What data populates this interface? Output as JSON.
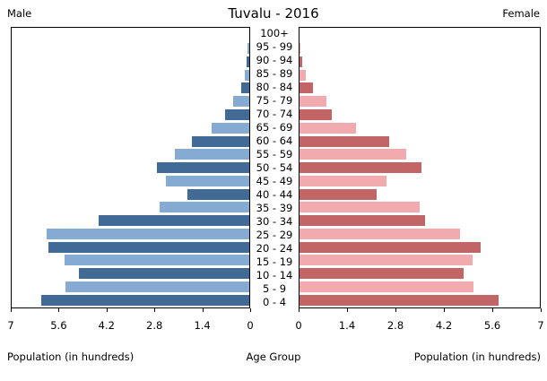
{
  "header": {
    "title": "Tuvalu - 2016",
    "left_label": "Male",
    "right_label": "Female"
  },
  "chart_data": {
    "type": "bar",
    "subtype": "population-pyramid",
    "title": "Tuvalu - 2016",
    "age_groups": [
      "100+",
      "95 - 99",
      "90 - 94",
      "85 - 89",
      "80 - 84",
      "75 - 79",
      "70 - 74",
      "65 - 69",
      "60 - 64",
      "55 - 59",
      "50 - 54",
      "45 - 49",
      "40 - 44",
      "35 - 39",
      "30 - 34",
      "25 - 29",
      "20 - 24",
      "15 - 19",
      "10 - 14",
      "5 - 9",
      "0 - 4"
    ],
    "series": [
      {
        "name": "Male",
        "values": [
          0.0,
          0.05,
          0.09,
          0.13,
          0.25,
          0.47,
          0.72,
          1.12,
          1.7,
          2.18,
          2.72,
          2.46,
          1.81,
          2.64,
          4.43,
          5.96,
          5.91,
          5.45,
          5.03,
          5.41,
          6.13
        ]
      },
      {
        "name": "Female",
        "values": [
          0.0,
          0.03,
          0.08,
          0.18,
          0.38,
          0.79,
          0.95,
          1.64,
          2.6,
          3.1,
          3.54,
          2.54,
          2.25,
          3.49,
          3.65,
          4.67,
          5.28,
          5.03,
          4.77,
          5.08,
          5.79
        ]
      }
    ],
    "xlim": [
      0,
      7
    ],
    "ticks_left": [
      "7",
      "5.6",
      "4.2",
      "2.8",
      "1.4",
      "0"
    ],
    "ticks_right": [
      "0",
      "1.4",
      "2.8",
      "4.2",
      "5.6",
      "7"
    ],
    "xlabel_left": "Population (in hundreds)",
    "xlabel_center": "Age Group",
    "xlabel_right": "Population (in hundreds)",
    "legend_position": "top-corners",
    "grid": "off",
    "colors": {
      "male_dark": "#426a96",
      "male_light": "#86abd3",
      "female_dark": "#c26567",
      "female_light": "#f1abae"
    }
  }
}
